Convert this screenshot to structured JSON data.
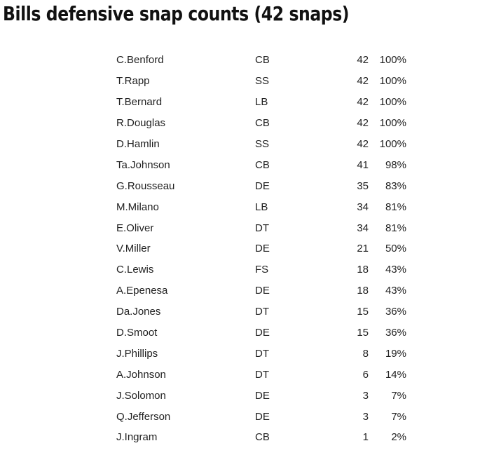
{
  "title": "Bills defensive snap counts (42 snaps)",
  "players": [
    {
      "name": "C.Benford",
      "pos": "CB",
      "snaps": "42",
      "pct": "100%"
    },
    {
      "name": "T.Rapp",
      "pos": "SS",
      "snaps": "42",
      "pct": "100%"
    },
    {
      "name": "T.Bernard",
      "pos": "LB",
      "snaps": "42",
      "pct": "100%"
    },
    {
      "name": "R.Douglas",
      "pos": "CB",
      "snaps": "42",
      "pct": "100%"
    },
    {
      "name": "D.Hamlin",
      "pos": "SS",
      "snaps": "42",
      "pct": "100%"
    },
    {
      "name": "Ta.Johnson",
      "pos": "CB",
      "snaps": "41",
      "pct": "98%"
    },
    {
      "name": "G.Rousseau",
      "pos": "DE",
      "snaps": "35",
      "pct": "83%"
    },
    {
      "name": "M.Milano",
      "pos": "LB",
      "snaps": "34",
      "pct": "81%"
    },
    {
      "name": "E.Oliver",
      "pos": "DT",
      "snaps": "34",
      "pct": "81%"
    },
    {
      "name": "V.Miller",
      "pos": "DE",
      "snaps": "21",
      "pct": "50%"
    },
    {
      "name": "C.Lewis",
      "pos": "FS",
      "snaps": "18",
      "pct": "43%"
    },
    {
      "name": "A.Epenesa",
      "pos": "DE",
      "snaps": "18",
      "pct": "43%"
    },
    {
      "name": "Da.Jones",
      "pos": "DT",
      "snaps": "15",
      "pct": "36%"
    },
    {
      "name": "D.Smoot",
      "pos": "DE",
      "snaps": "15",
      "pct": "36%"
    },
    {
      "name": "J.Phillips",
      "pos": "DT",
      "snaps": "8",
      "pct": "19%"
    },
    {
      "name": "A.Johnson",
      "pos": "DT",
      "snaps": "6",
      "pct": "14%"
    },
    {
      "name": "J.Solomon",
      "pos": "DE",
      "snaps": "3",
      "pct": "7%"
    },
    {
      "name": "Q.Jefferson",
      "pos": "DE",
      "snaps": "3",
      "pct": "7%"
    },
    {
      "name": "J.Ingram",
      "pos": "CB",
      "snaps": "1",
      "pct": "2%"
    }
  ]
}
